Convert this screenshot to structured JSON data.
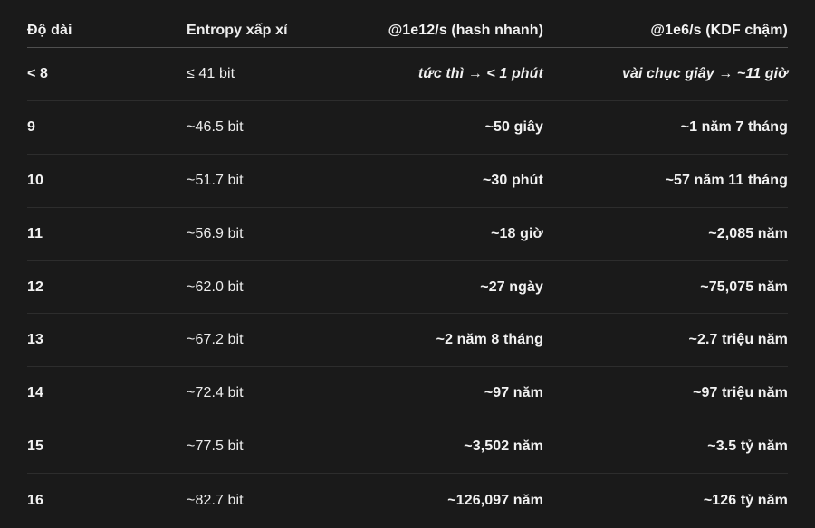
{
  "colors": {
    "background": "#1a1a1a",
    "text": "#f2f2f2",
    "header_divider": "#4f4f4f",
    "row_divider": "#2d2d2d"
  },
  "chart_data": {
    "type": "table",
    "columns": [
      "Độ dài",
      "Entropy xấp xỉ",
      "@1e12/s (hash nhanh)",
      "@1e6/s (KDF chậm)"
    ],
    "column_align": [
      "left",
      "left",
      "right",
      "right"
    ],
    "rows": [
      [
        "< 8",
        "≤ 41 bit",
        "tức thì → < 1 phút",
        "vài chục giây → ~11 giờ"
      ],
      [
        "9",
        "~46.5 bit",
        "~50 giây",
        "~1 năm 7 tháng"
      ],
      [
        "10",
        "~51.7 bit",
        "~30 phút",
        "~57 năm 11 tháng"
      ],
      [
        "11",
        "~56.9 bit",
        "~18 giờ",
        "~2,085 năm"
      ],
      [
        "12",
        "~62.0 bit",
        "~27 ngày",
        "~75,075 năm"
      ],
      [
        "13",
        "~67.2 bit",
        "~2 năm 8 tháng",
        "~2.7 triệu năm"
      ],
      [
        "14",
        "~72.4 bit",
        "~97 năm",
        "~97 triệu năm"
      ],
      [
        "15",
        "~77.5 bit",
        "~3,502 năm",
        "~3.5 tỷ năm"
      ],
      [
        "16",
        "~82.7 bit",
        "~126,097 năm",
        "~126 tỷ năm"
      ]
    ],
    "emphasized_row_index": 0,
    "layout": {
      "grid": "horizontal row dividers only",
      "legend": "none",
      "title": ""
    }
  }
}
